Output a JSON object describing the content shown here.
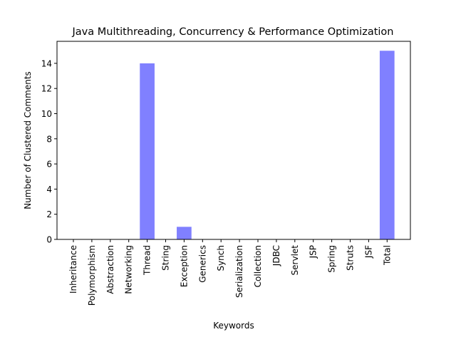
{
  "chart_data": {
    "type": "bar",
    "title": "Java Multithreading, Concurrency & Performance Optimization",
    "xlabel": "Keywords",
    "ylabel": "Number of Clustered Comments",
    "categories": [
      "Inheritance",
      "Polymorphism",
      "Abstraction",
      "Networking",
      "Thread",
      "String",
      "Exception",
      "Generics",
      "Synch",
      "Serialization",
      "Collection",
      "JDBC",
      "Servlet",
      "JSP",
      "Spring",
      "Struts",
      "JSF",
      "Total"
    ],
    "values": [
      0,
      0,
      0,
      0,
      14,
      0,
      1,
      0,
      0,
      0,
      0,
      0,
      0,
      0,
      0,
      0,
      0,
      15
    ],
    "ylim": [
      0,
      15.75
    ],
    "yticks": [
      0,
      2,
      4,
      6,
      8,
      10,
      12,
      14
    ],
    "bar_color": "#8080ff",
    "grid": false,
    "legend": "none"
  }
}
